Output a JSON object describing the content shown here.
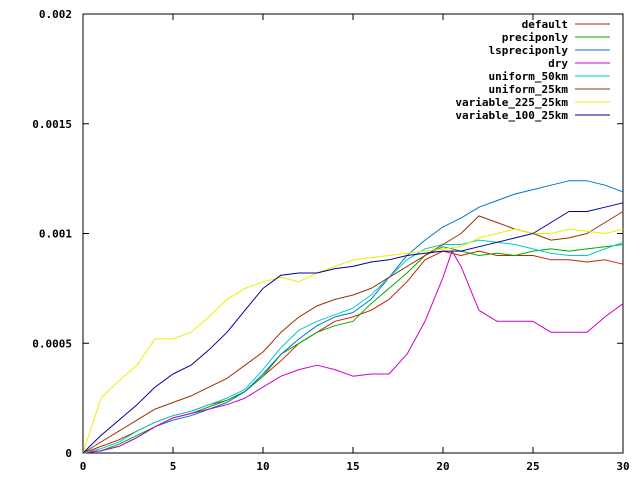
{
  "chart_data": {
    "type": "line",
    "title": "",
    "xlabel": "",
    "ylabel": "",
    "xlim": [
      0,
      30
    ],
    "ylim": [
      0,
      0.002
    ],
    "xticks": [
      0,
      5,
      10,
      15,
      20,
      25,
      30
    ],
    "xtick_labels": [
      "0",
      "5",
      "10",
      "15",
      "20",
      "25",
      "30"
    ],
    "yticks": [
      0,
      0.0005,
      0.001,
      0.0015,
      0.002
    ],
    "ytick_labels": [
      "0",
      "0.0005",
      "0.001",
      "0.0015",
      "0.002"
    ],
    "grid": false,
    "legend_position": "top-right",
    "series": [
      {
        "name": "default",
        "color": "#cc2200",
        "x": [
          0,
          1,
          2,
          3,
          4,
          5,
          6,
          7,
          8,
          9,
          10,
          11,
          12,
          13,
          14,
          15,
          16,
          17,
          18,
          19,
          20,
          21,
          22,
          23,
          24,
          25,
          26,
          27,
          28,
          29,
          30
        ],
        "y": [
          0,
          3e-05,
          6e-05,
          0.0001,
          0.00014,
          0.00017,
          0.00019,
          0.00022,
          0.00024,
          0.00028,
          0.00035,
          0.00042,
          0.0005,
          0.00055,
          0.0006,
          0.00062,
          0.00065,
          0.0007,
          0.00078,
          0.00088,
          0.00092,
          0.0009,
          0.00092,
          0.0009,
          0.0009,
          0.0009,
          0.00088,
          0.00088,
          0.00087,
          0.00088,
          0.00086
        ]
      },
      {
        "name": "preciponly",
        "color": "#00aa00",
        "x": [
          0,
          1,
          2,
          3,
          4,
          5,
          6,
          7,
          8,
          9,
          10,
          11,
          12,
          13,
          14,
          15,
          16,
          17,
          18,
          19,
          20,
          21,
          22,
          23,
          24,
          25,
          26,
          27,
          28,
          29,
          30
        ],
        "y": [
          0,
          1e-05,
          4e-05,
          8e-05,
          0.00012,
          0.00016,
          0.00018,
          0.00021,
          0.00024,
          0.00028,
          0.00035,
          0.00045,
          0.0005,
          0.00055,
          0.00058,
          0.0006,
          0.00068,
          0.00075,
          0.00082,
          0.0009,
          0.00094,
          0.00092,
          0.0009,
          0.00091,
          0.0009,
          0.00092,
          0.00093,
          0.00092,
          0.00093,
          0.00094,
          0.00095
        ]
      },
      {
        "name": "lspreciponly",
        "color": "#0077cc",
        "x": [
          0,
          1,
          2,
          3,
          4,
          5,
          6,
          7,
          8,
          9,
          10,
          11,
          12,
          13,
          14,
          15,
          16,
          17,
          18,
          19,
          20,
          21,
          22,
          23,
          24,
          25,
          26,
          27,
          28,
          29,
          30
        ],
        "y": [
          0,
          1e-05,
          3e-05,
          7e-05,
          0.00012,
          0.00015,
          0.00017,
          0.0002,
          0.00023,
          0.00028,
          0.00036,
          0.00045,
          0.00052,
          0.00058,
          0.00062,
          0.00064,
          0.0007,
          0.0008,
          0.0009,
          0.00097,
          0.00103,
          0.00107,
          0.00112,
          0.00115,
          0.00118,
          0.0012,
          0.00122,
          0.00124,
          0.00124,
          0.00122,
          0.00119
        ]
      },
      {
        "name": "dry",
        "color": "#cc00cc",
        "x": [
          0,
          1,
          2,
          3,
          4,
          5,
          6,
          7,
          8,
          9,
          10,
          11,
          12,
          13,
          14,
          15,
          16,
          17,
          18,
          19,
          20,
          20.5,
          21,
          22,
          23,
          24,
          25,
          26,
          27,
          28,
          29,
          30
        ],
        "y": [
          0,
          1e-05,
          3e-05,
          7e-05,
          0.00012,
          0.00016,
          0.00018,
          0.0002,
          0.00022,
          0.00025,
          0.0003,
          0.00035,
          0.00038,
          0.0004,
          0.00038,
          0.00035,
          0.00036,
          0.00036,
          0.00045,
          0.0006,
          0.0008,
          0.00092,
          0.00085,
          0.00065,
          0.0006,
          0.0006,
          0.0006,
          0.00055,
          0.00055,
          0.00055,
          0.00062,
          0.00068
        ]
      },
      {
        "name": "uniform_50km",
        "color": "#00cccc",
        "x": [
          0,
          1,
          2,
          3,
          4,
          5,
          6,
          7,
          8,
          9,
          10,
          11,
          12,
          13,
          14,
          15,
          16,
          17,
          18,
          19,
          20,
          21,
          22,
          23,
          24,
          25,
          26,
          27,
          28,
          29,
          30
        ],
        "y": [
          0,
          2e-05,
          5e-05,
          0.0001,
          0.00014,
          0.00017,
          0.00019,
          0.00022,
          0.00025,
          0.00029,
          0.00038,
          0.00048,
          0.00056,
          0.0006,
          0.00063,
          0.00066,
          0.00072,
          0.0008,
          0.00088,
          0.00093,
          0.00095,
          0.00095,
          0.00097,
          0.00096,
          0.00095,
          0.00093,
          0.00091,
          0.0009,
          0.0009,
          0.00093,
          0.00096
        ]
      },
      {
        "name": "uniform_25km",
        "color": "#993300",
        "x": [
          0,
          1,
          2,
          3,
          4,
          5,
          6,
          7,
          8,
          9,
          10,
          11,
          12,
          13,
          14,
          15,
          16,
          17,
          18,
          19,
          20,
          21,
          22,
          23,
          24,
          25,
          26,
          27,
          28,
          29,
          30
        ],
        "y": [
          0,
          5e-05,
          0.0001,
          0.00015,
          0.0002,
          0.00023,
          0.00026,
          0.0003,
          0.00034,
          0.0004,
          0.00046,
          0.00055,
          0.00062,
          0.00067,
          0.0007,
          0.00072,
          0.00075,
          0.0008,
          0.00085,
          0.0009,
          0.00095,
          0.001,
          0.00108,
          0.00105,
          0.00102,
          0.001,
          0.00097,
          0.00098,
          0.001,
          0.00105,
          0.0011
        ]
      },
      {
        "name": "variable_225_25km",
        "color": "#eeee00",
        "x": [
          0,
          1,
          2,
          3,
          4,
          5,
          6,
          7,
          8,
          9,
          10,
          11,
          12,
          13,
          14,
          15,
          16,
          17,
          18,
          19,
          20,
          21,
          22,
          23,
          24,
          25,
          26,
          27,
          28,
          29,
          30
        ],
        "y": [
          0,
          0.00025,
          0.00033,
          0.0004,
          0.00052,
          0.00052,
          0.00055,
          0.00062,
          0.0007,
          0.00075,
          0.00078,
          0.0008,
          0.00078,
          0.00082,
          0.00085,
          0.00088,
          0.00089,
          0.0009,
          0.00091,
          0.00092,
          0.00093,
          0.00094,
          0.00098,
          0.001,
          0.00102,
          0.001,
          0.001,
          0.00102,
          0.00101,
          0.001,
          0.00102
        ]
      },
      {
        "name": "variable_100_25km",
        "color": "#000099",
        "x": [
          0,
          1,
          2,
          3,
          4,
          5,
          6,
          7,
          8,
          9,
          10,
          11,
          12,
          13,
          14,
          15,
          16,
          17,
          18,
          19,
          20,
          21,
          22,
          23,
          24,
          25,
          26,
          27,
          28,
          29,
          30
        ],
        "y": [
          0,
          8e-05,
          0.00015,
          0.00022,
          0.0003,
          0.00036,
          0.0004,
          0.00047,
          0.00055,
          0.00065,
          0.00075,
          0.00081,
          0.00082,
          0.00082,
          0.00084,
          0.00085,
          0.00087,
          0.00088,
          0.0009,
          0.00091,
          0.00092,
          0.00092,
          0.00094,
          0.00096,
          0.00098,
          0.001,
          0.00105,
          0.0011,
          0.0011,
          0.00112,
          0.00114
        ]
      }
    ]
  }
}
